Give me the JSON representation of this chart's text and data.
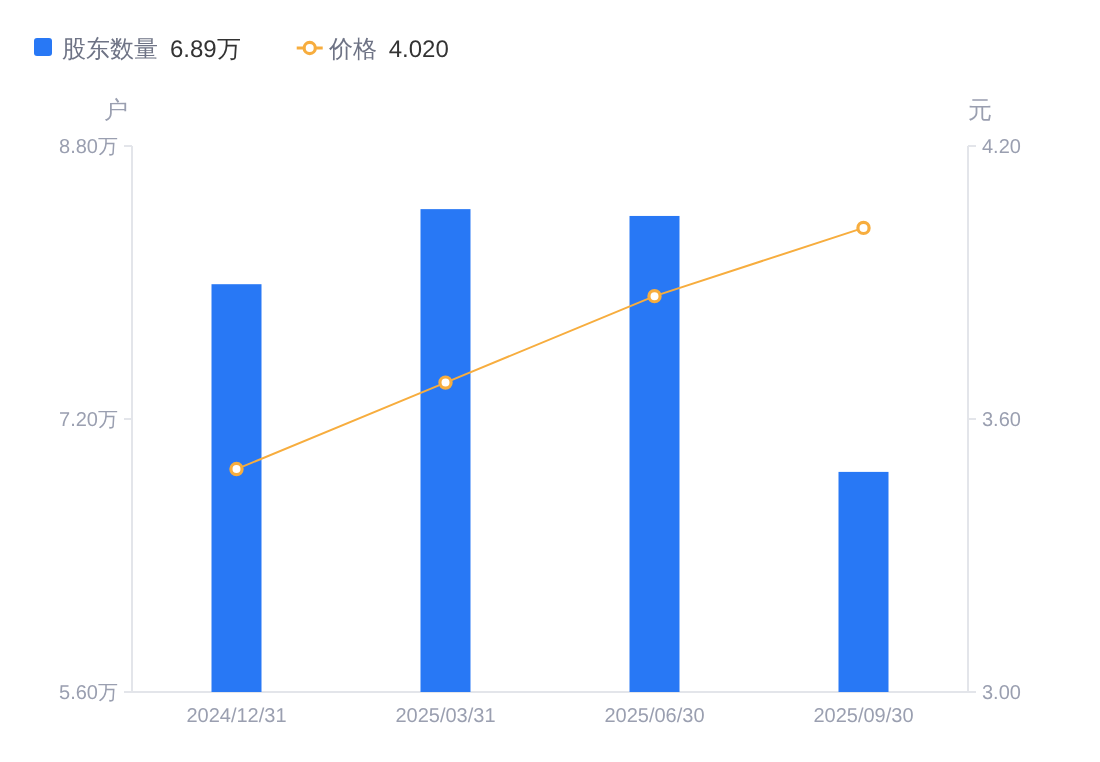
{
  "chart_data": {
    "type": "bar",
    "categories": [
      "2024/12/31",
      "2025/03/31",
      "2025/06/30",
      "2025/09/30"
    ],
    "series": [
      {
        "name": "股东数量",
        "color": "#2878f5",
        "values": [
          7.99,
          8.43,
          8.39,
          6.89
        ]
      },
      {
        "name": "价格",
        "type": "line",
        "color": "#f7ad3e",
        "axis": "y2",
        "marker": "circle",
        "values": [
          3.49,
          3.68,
          3.87,
          4.02
        ]
      }
    ],
    "annotations": [
      "6.89万",
      "4.020"
    ],
    "ylabel": "户",
    "y2label": "元",
    "ylim": [
      5.6,
      8.8
    ],
    "yticks": [
      {
        "value": 5.6,
        "label": "5.60万"
      },
      {
        "value": 7.2,
        "label": "7.20万"
      },
      {
        "value": 8.8,
        "label": "8.80万"
      }
    ],
    "y2lim": [
      3.0,
      4.2
    ],
    "y2ticks": [
      {
        "value": 3.0,
        "label": "3.00"
      },
      {
        "value": 3.6,
        "label": "3.60"
      },
      {
        "value": 4.2,
        "label": "4.20"
      }
    ],
    "legend": "top left"
  }
}
